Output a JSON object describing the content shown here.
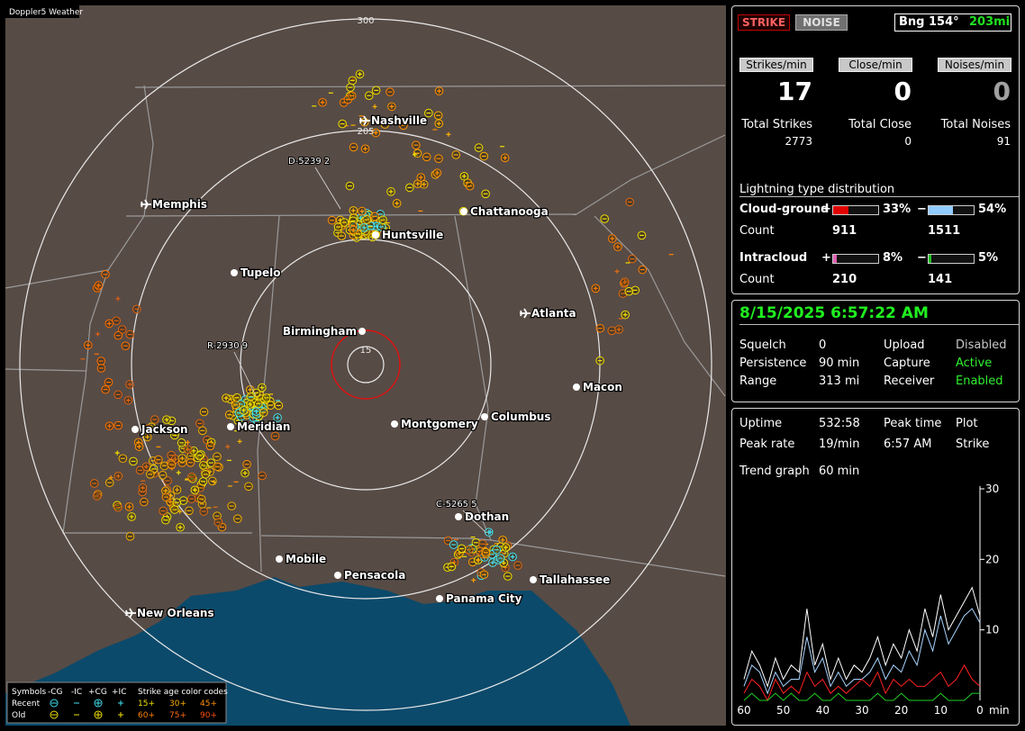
{
  "map": {
    "title": "Doppler5 Weather",
    "ring_labels": [
      "300",
      "205",
      "15"
    ],
    "cities": [
      "Nashville",
      "Memphis",
      "Chattanooga",
      "Huntsville",
      "Tupelo",
      "Atlanta",
      "Birmingham",
      "Macon",
      "Jackson",
      "Meridian",
      "Montgomery",
      "Columbus",
      "Dothan",
      "Mobile",
      "Pensacola",
      "Tallahassee",
      "Panama City",
      "New Orleans"
    ],
    "storm_labels": [
      "D-5239 2",
      "R-2930 9",
      "C-5265 5"
    ],
    "legend": {
      "symbols": "Symbols",
      "types": [
        "-CG",
        "-IC",
        "+CG",
        "+IC"
      ],
      "age_title": "Strike age color codes",
      "rows": [
        {
          "name": "Recent",
          "ages": [
            "15+",
            "30+",
            "45+"
          ]
        },
        {
          "name": "Old",
          "ages": [
            "60+",
            "75+",
            "90+"
          ]
        }
      ]
    }
  },
  "status": {
    "mode_buttons": [
      "STRIKE",
      "NOISE"
    ],
    "bearing": "Bng 154°",
    "distance": "203mi",
    "rates": [
      {
        "button": "Strikes/min",
        "value": 17
      },
      {
        "button": "Close/min",
        "value": 0
      },
      {
        "button": "Noises/min",
        "value": 0
      }
    ],
    "totals": [
      {
        "label": "Total Strikes",
        "value": 2773
      },
      {
        "label": "Total Close",
        "value": 0
      },
      {
        "label": "Total Noises",
        "value": 91
      }
    ],
    "distribution": {
      "title": "Lightning type distribution",
      "count_label": "Count",
      "types": [
        {
          "name": "Cloud-ground",
          "positive": {
            "sign": "+",
            "percent": 33,
            "percent_label": "33%",
            "count": 911
          },
          "negative": {
            "sign": "−",
            "percent": 54,
            "percent_label": "54%",
            "count": 1511
          }
        },
        {
          "name": "Intracloud",
          "positive": {
            "sign": "+",
            "percent": 8,
            "percent_label": "8%",
            "count": 210
          },
          "negative": {
            "sign": "−",
            "percent": 5,
            "percent_label": "5%",
            "count": 141
          }
        }
      ]
    }
  },
  "settings": {
    "datetime": "8/15/2025 6:57:22 AM",
    "rows": [
      [
        "Squelch",
        0,
        "Upload",
        "Disabled"
      ],
      [
        "Persistence",
        "90 min",
        "Capture",
        "Active"
      ],
      [
        "Range",
        "313 mi",
        "Receiver",
        "Enabled"
      ]
    ]
  },
  "stats": {
    "rows": [
      [
        "Uptime",
        "532:58",
        "Peak time",
        "Plot"
      ],
      [
        "Peak rate",
        "19/min",
        "6:57 AM",
        "Strike"
      ]
    ],
    "trend_label": "Trend graph",
    "trend_span": "60 min"
  },
  "trend_graph": {
    "type": "line",
    "x": [
      60,
      58,
      56,
      54,
      52,
      50,
      48,
      46,
      44,
      42,
      40,
      38,
      36,
      34,
      32,
      30,
      28,
      26,
      24,
      22,
      20,
      18,
      16,
      14,
      12,
      10,
      8,
      6,
      4,
      2,
      0
    ],
    "series": [
      {
        "color": "#ffffff",
        "values": [
          3,
          7,
          5,
          2,
          6,
          3,
          5,
          4,
          13,
          5,
          8,
          3,
          6,
          3,
          5,
          4,
          6,
          9,
          5,
          8,
          6,
          10,
          7,
          13,
          9,
          15,
          10,
          12,
          14,
          16,
          12
        ]
      },
      {
        "color": "#a8d4ff",
        "values": [
          2,
          5,
          4,
          1,
          4,
          2,
          3,
          3,
          9,
          4,
          6,
          2,
          4,
          2,
          3,
          3,
          4,
          6,
          3,
          5,
          4,
          7,
          5,
          10,
          7,
          12,
          8,
          10,
          12,
          13,
          11
        ]
      },
      {
        "color": "#ff2020",
        "values": [
          1,
          3,
          2,
          0,
          3,
          1,
          2,
          1,
          4,
          2,
          3,
          1,
          2,
          1,
          2,
          3,
          2,
          4,
          1,
          3,
          2,
          3,
          2,
          2,
          3,
          4,
          2,
          3,
          5,
          3,
          2
        ]
      },
      {
        "color": "#20d020",
        "values": [
          0,
          1,
          0,
          0,
          1,
          0,
          1,
          0,
          0,
          1,
          0,
          0,
          1,
          0,
          0,
          0,
          0,
          1,
          0,
          0,
          1,
          0,
          0,
          0,
          0,
          1,
          0,
          0,
          0,
          1,
          1
        ]
      }
    ],
    "xlim": [
      60,
      0
    ],
    "xticks": [
      60,
      50,
      40,
      30,
      20,
      10,
      0
    ],
    "x_unit": "min",
    "ylim": [
      0,
      30
    ],
    "yticks": [
      10,
      20,
      30
    ]
  }
}
